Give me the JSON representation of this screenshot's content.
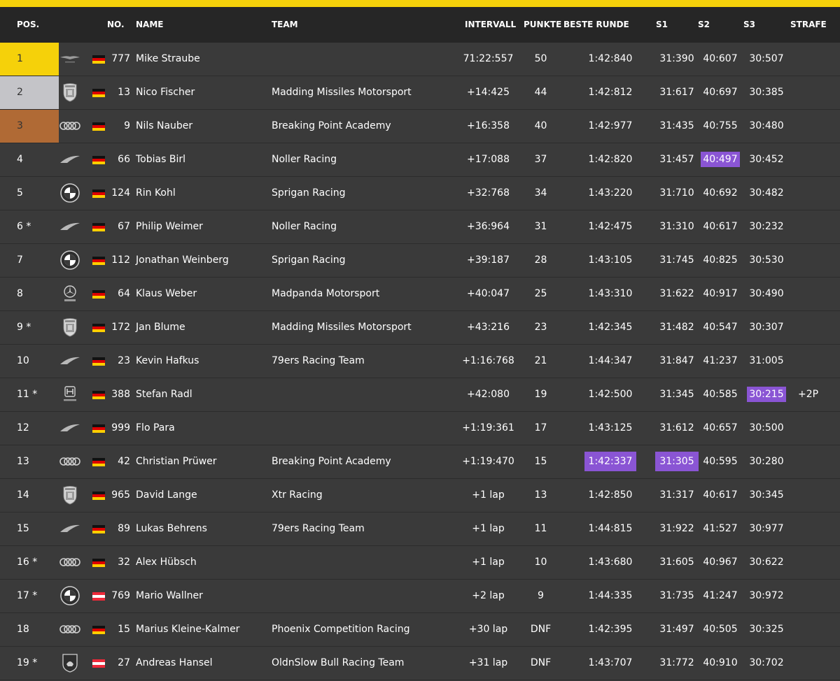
{
  "colors": {
    "accent": "#f5d10a",
    "gold": "#f5d10a",
    "silver": "#c4c4c8",
    "bronze": "#b06a35",
    "fastest": "#8a55d4",
    "row_bg": "#3a3a3a",
    "header_bg": "#262626"
  },
  "headers": {
    "pos": "POS.",
    "no": "NO.",
    "name": "NAME",
    "team": "TEAM",
    "interval": "INTERVALL",
    "points": "PUNKTE",
    "best_lap": "BESTE RUNDE",
    "s1": "S1",
    "s2": "S2",
    "s3": "S3",
    "penalty": "STRAFE"
  },
  "rows": [
    {
      "pos": "1",
      "logo": "aston-martin-logo-icon",
      "flag": "de",
      "no": "777",
      "name": "Mike Straube",
      "team": "",
      "interval": "71:22:557",
      "points": "50",
      "best": "1:42:840",
      "s1": "31:390",
      "s2": "40:607",
      "s3": "30:507",
      "penalty": ""
    },
    {
      "pos": "2",
      "logo": "porsche-logo-icon",
      "flag": "de",
      "no": "13",
      "name": "Nico Fischer",
      "team": "Madding Missiles Motorsport",
      "interval": "+14:425",
      "points": "44",
      "best": "1:42:812",
      "s1": "31:617",
      "s2": "40:697",
      "s3": "30:385",
      "penalty": ""
    },
    {
      "pos": "3",
      "logo": "audi-logo-icon",
      "flag": "de",
      "no": "9",
      "name": "Nils Nauber",
      "team": "Breaking Point Academy",
      "interval": "+16:358",
      "points": "40",
      "best": "1:42:977",
      "s1": "31:435",
      "s2": "40:755",
      "s3": "30:480",
      "penalty": ""
    },
    {
      "pos": "4",
      "logo": "mclaren-logo-icon",
      "flag": "de",
      "no": "66",
      "name": "Tobias Birl",
      "team": "Noller Racing",
      "interval": "+17:088",
      "points": "37",
      "best": "1:42:820",
      "s1": "31:457",
      "s2": "40:497",
      "s3": "30:452",
      "penalty": "",
      "fast": "s2"
    },
    {
      "pos": "5",
      "logo": "bmw-logo-icon",
      "flag": "de",
      "no": "124",
      "name": "Rin Kohl",
      "team": "Sprigan Racing",
      "interval": "+32:768",
      "points": "34",
      "best": "1:43:220",
      "s1": "31:710",
      "s2": "40:692",
      "s3": "30:482",
      "penalty": ""
    },
    {
      "pos": "6 *",
      "logo": "mclaren-logo-icon",
      "flag": "de",
      "no": "67",
      "name": "Philip Weimer",
      "team": "Noller Racing",
      "interval": "+36:964",
      "points": "31",
      "best": "1:42:475",
      "s1": "31:310",
      "s2": "40:617",
      "s3": "30:232",
      "penalty": ""
    },
    {
      "pos": "7",
      "logo": "bmw-logo-icon",
      "flag": "de",
      "no": "112",
      "name": "Jonathan Weinberg",
      "team": "Sprigan Racing",
      "interval": "+39:187",
      "points": "28",
      "best": "1:43:105",
      "s1": "31:745",
      "s2": "40:825",
      "s3": "30:530",
      "penalty": ""
    },
    {
      "pos": "8",
      "logo": "mercedes-amg-logo-icon",
      "flag": "de",
      "no": "64",
      "name": "Klaus Weber",
      "team": "Madpanda Motorsport",
      "interval": "+40:047",
      "points": "25",
      "best": "1:43:310",
      "s1": "31:622",
      "s2": "40:917",
      "s3": "30:490",
      "penalty": ""
    },
    {
      "pos": "9 *",
      "logo": "porsche-logo-icon",
      "flag": "de",
      "no": "172",
      "name": "Jan Blume",
      "team": "Madding Missiles Motorsport",
      "interval": "+43:216",
      "points": "23",
      "best": "1:42:345",
      "s1": "31:482",
      "s2": "40:547",
      "s3": "30:307",
      "penalty": ""
    },
    {
      "pos": "10",
      "logo": "mclaren-logo-icon",
      "flag": "de",
      "no": "23",
      "name": "Kevin Hafkus",
      "team": "79ers Racing Team",
      "interval": "+1:16:768",
      "points": "21",
      "best": "1:44:347",
      "s1": "31:847",
      "s2": "41:237",
      "s3": "31:005",
      "penalty": ""
    },
    {
      "pos": "11 *",
      "logo": "honda-logo-icon",
      "flag": "de",
      "no": "388",
      "name": "Stefan Radl",
      "team": "",
      "interval": "+42:080",
      "points": "19",
      "best": "1:42:500",
      "s1": "31:345",
      "s2": "40:585",
      "s3": "30:215",
      "penalty": "+2P",
      "fast": "s3"
    },
    {
      "pos": "12",
      "logo": "mclaren-logo-icon",
      "flag": "de",
      "no": "999",
      "name": "Flo Para",
      "team": "",
      "interval": "+1:19:361",
      "points": "17",
      "best": "1:43:125",
      "s1": "31:612",
      "s2": "40:657",
      "s3": "30:500",
      "penalty": ""
    },
    {
      "pos": "13",
      "logo": "audi-logo-icon",
      "flag": "de",
      "no": "42",
      "name": "Christian Prüwer",
      "team": "Breaking Point Academy",
      "interval": "+1:19:470",
      "points": "15",
      "best": "1:42:337",
      "s1": "31:305",
      "s2": "40:595",
      "s3": "30:280",
      "penalty": "",
      "fast": "best,s1"
    },
    {
      "pos": "14",
      "logo": "porsche-logo-icon",
      "flag": "de",
      "no": "965",
      "name": "David Lange",
      "team": "Xtr Racing",
      "interval": "+1 lap",
      "points": "13",
      "best": "1:42:850",
      "s1": "31:317",
      "s2": "40:617",
      "s3": "30:345",
      "penalty": ""
    },
    {
      "pos": "15",
      "logo": "mclaren-logo-icon",
      "flag": "de",
      "no": "89",
      "name": "Lukas Behrens",
      "team": "79ers Racing Team",
      "interval": "+1 lap",
      "points": "11",
      "best": "1:44:815",
      "s1": "31:922",
      "s2": "41:527",
      "s3": "30:977",
      "penalty": ""
    },
    {
      "pos": "16 *",
      "logo": "audi-logo-icon",
      "flag": "de",
      "no": "32",
      "name": "Alex Hübsch",
      "team": "",
      "interval": "+1 lap",
      "points": "10",
      "best": "1:43:680",
      "s1": "31:605",
      "s2": "40:967",
      "s3": "30:622",
      "penalty": ""
    },
    {
      "pos": "17 *",
      "logo": "bmw-logo-icon",
      "flag": "at",
      "no": "769",
      "name": "Mario Wallner",
      "team": "",
      "interval": "+2 lap",
      "points": "9",
      "best": "1:44:335",
      "s1": "31:735",
      "s2": "41:247",
      "s3": "30:972",
      "penalty": ""
    },
    {
      "pos": "18",
      "logo": "audi-logo-icon",
      "flag": "de",
      "no": "15",
      "name": "Marius Kleine-Kalmer",
      "team": "Phoenix Competition Racing",
      "interval": "+30 lap",
      "points": "DNF",
      "best": "1:42:395",
      "s1": "31:497",
      "s2": "40:505",
      "s3": "30:325",
      "penalty": ""
    },
    {
      "pos": "19 *",
      "logo": "lamborghini-logo-icon",
      "flag": "at",
      "no": "27",
      "name": "Andreas Hansel",
      "team": "OldnSlow Bull Racing Team",
      "interval": "+31 lap",
      "points": "DNF",
      "best": "1:43:707",
      "s1": "31:772",
      "s2": "40:910",
      "s3": "30:702",
      "penalty": ""
    }
  ]
}
